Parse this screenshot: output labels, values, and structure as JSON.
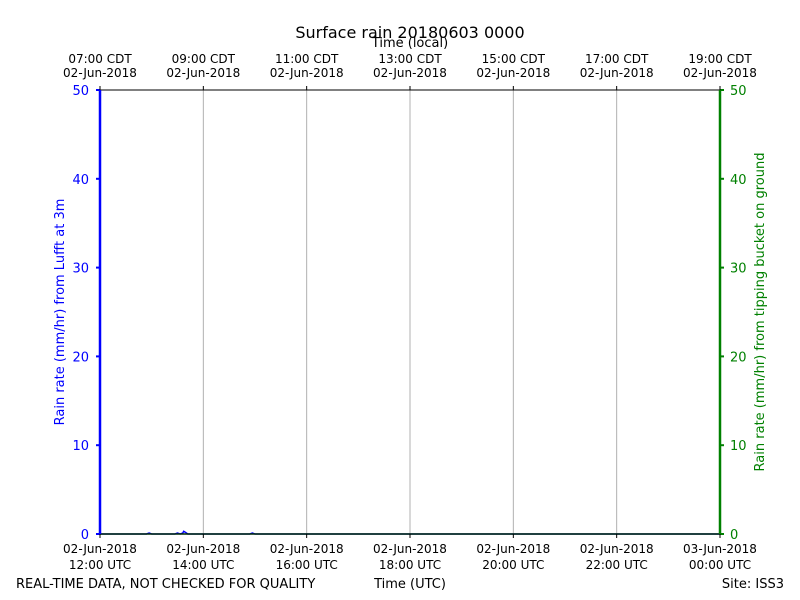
{
  "chart_data": {
    "type": "line",
    "title": "Surface rain 20180603 0000",
    "top_axis_label": "Time (local)",
    "xlabel": "Time (UTC)",
    "ylabel_left": "Rain rate (mm/hr) from Lufft at 3m",
    "ylabel_right": "Rain rate (mm/hr) from tipping bucket on ground",
    "ylim": [
      0,
      50
    ],
    "xlim_hours": [
      12,
      24
    ],
    "grid": true,
    "yticks_left": [
      "0",
      "10",
      "20",
      "30",
      "40",
      "50"
    ],
    "yticks_right": [
      "0",
      "10",
      "20",
      "30",
      "40",
      "50"
    ],
    "xticks_bottom": [
      {
        "hour": 12,
        "line1": "02-Jun-2018",
        "line2": "12:00 UTC"
      },
      {
        "hour": 14,
        "line1": "02-Jun-2018",
        "line2": "14:00 UTC"
      },
      {
        "hour": 16,
        "line1": "02-Jun-2018",
        "line2": "16:00 UTC"
      },
      {
        "hour": 18,
        "line1": "02-Jun-2018",
        "line2": "18:00 UTC"
      },
      {
        "hour": 20,
        "line1": "02-Jun-2018",
        "line2": "20:00 UTC"
      },
      {
        "hour": 22,
        "line1": "02-Jun-2018",
        "line2": "22:00 UTC"
      },
      {
        "hour": 24,
        "line1": "03-Jun-2018",
        "line2": "00:00 UTC"
      }
    ],
    "xticks_top": [
      {
        "hour": 12,
        "line1": "07:00 CDT",
        "line2": "02-Jun-2018"
      },
      {
        "hour": 14,
        "line1": "09:00 CDT",
        "line2": "02-Jun-2018"
      },
      {
        "hour": 16,
        "line1": "11:00 CDT",
        "line2": "02-Jun-2018"
      },
      {
        "hour": 18,
        "line1": "13:00 CDT",
        "line2": "02-Jun-2018"
      },
      {
        "hour": 20,
        "line1": "15:00 CDT",
        "line2": "02-Jun-2018"
      },
      {
        "hour": 22,
        "line1": "17:00 CDT",
        "line2": "02-Jun-2018"
      },
      {
        "hour": 24,
        "line1": "19:00 CDT",
        "line2": "02-Jun-2018"
      }
    ],
    "series": [
      {
        "axis": "left",
        "color": "#0000ff",
        "x": [
          12.0,
          12.9,
          12.95,
          13.0,
          13.45,
          13.5,
          13.55,
          13.6,
          13.62,
          13.65,
          13.7,
          14.0,
          14.9,
          14.95,
          15.0,
          16.0,
          18.0,
          20.0,
          22.0,
          24.0
        ],
        "y": [
          0,
          0,
          0.1,
          0,
          0,
          0.1,
          0,
          0.1,
          0.3,
          0.2,
          0,
          0,
          0,
          0.1,
          0,
          0,
          0,
          0,
          0,
          0
        ]
      },
      {
        "axis": "right",
        "color": "#008000",
        "x": [
          12.0,
          24.0
        ],
        "y": [
          0,
          0
        ]
      }
    ]
  },
  "footer": {
    "left": "REAL-TIME DATA, NOT CHECKED FOR QUALITY",
    "center": "Time (UTC)",
    "right": "Site: ISS3"
  },
  "colors": {
    "left_axis": "#0000ff",
    "right_axis": "#008000",
    "grid": "#b0b0b0"
  }
}
